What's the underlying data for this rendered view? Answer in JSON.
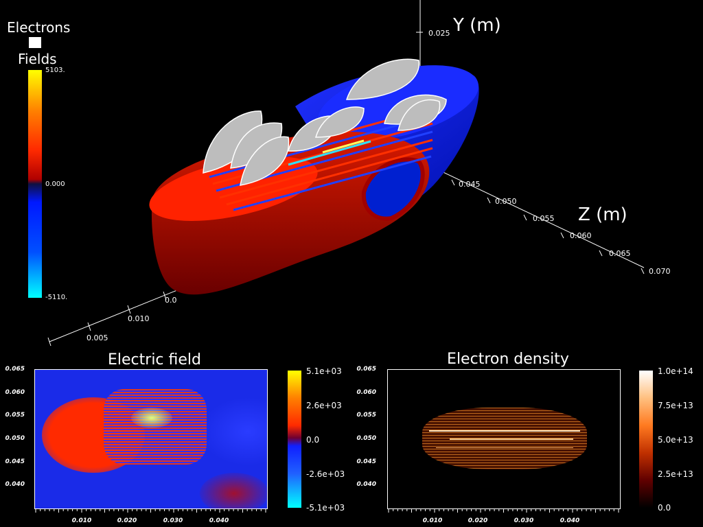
{
  "legend": {
    "electrons_label": "Electrons",
    "fields_label": "Fields",
    "colorbar_max": "5103.",
    "colorbar_zero": "0.000",
    "colorbar_min": "-5110."
  },
  "scene3d": {
    "y_axis_title": "Y (m)",
    "z_axis_title": "Z (m)",
    "y_ticks": [
      "0.025"
    ],
    "z_ticks": [
      "0.045",
      "0.050",
      "0.055",
      "0.060",
      "0.065",
      "0.070"
    ],
    "x_ticks": [
      "0.005",
      "0.010",
      "0.0"
    ]
  },
  "panel_left": {
    "title": "Electric field",
    "yticks": [
      "0.065",
      "0.060",
      "0.055",
      "0.050",
      "0.045",
      "0.040"
    ],
    "xticks": [
      "0.010",
      "0.020",
      "0.030",
      "0.040"
    ],
    "colorbar_ticks": [
      "5.1e+03",
      "2.6e+03",
      "0.0",
      "-2.6e+03",
      "-5.1e+03"
    ]
  },
  "panel_right": {
    "title": "Electron density",
    "yticks": [
      "0.065",
      "0.060",
      "0.055",
      "0.050",
      "0.045",
      "0.040"
    ],
    "xticks": [
      "0.010",
      "0.020",
      "0.030",
      "0.040"
    ],
    "colorbar_ticks": [
      "1.0e+14",
      "7.5e+13",
      "5.0e+13",
      "2.5e+13",
      "0.0"
    ]
  },
  "colors": {
    "field_positive": "#ff2a00",
    "field_negative": "#1f34ff",
    "field_max": "#ffff00",
    "field_min": "#00ffff",
    "electron_color": "#c8c8c8"
  }
}
